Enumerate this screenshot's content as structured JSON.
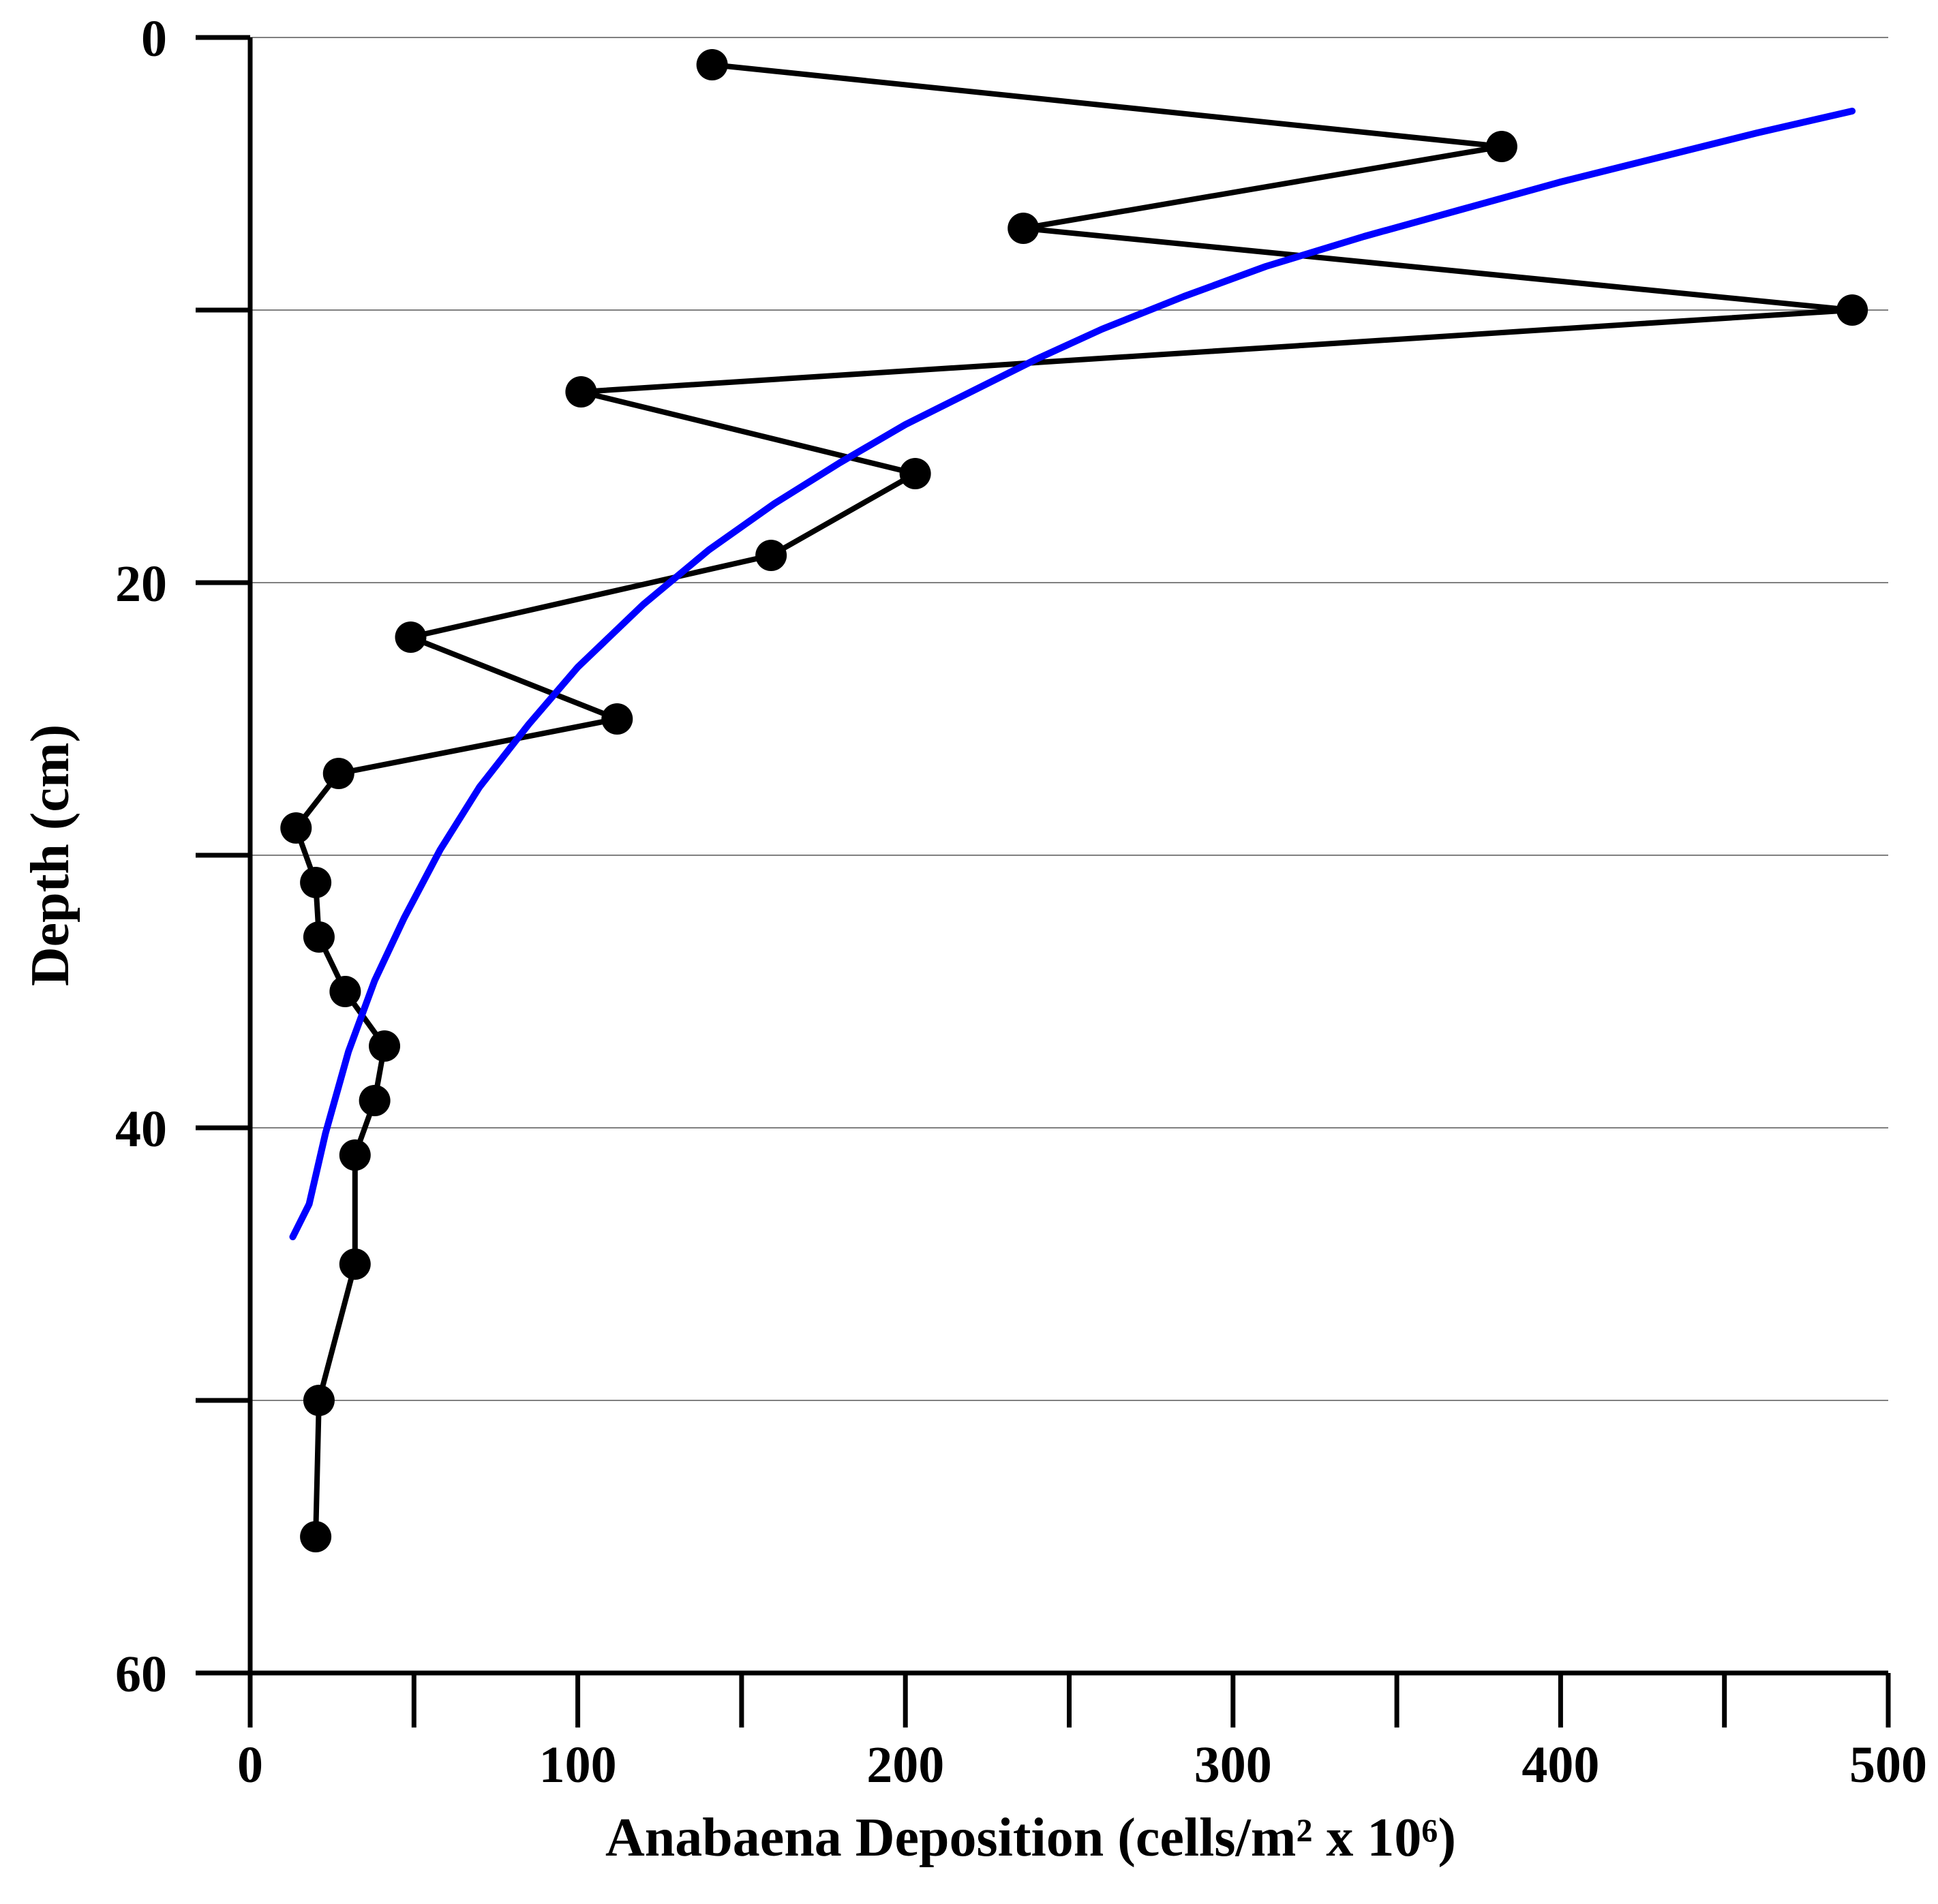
{
  "chart_data": {
    "type": "line",
    "xlabel": "Anabaena Deposition (cells/m² x 10⁶)",
    "ylabel": "Depth (cm)",
    "xlim": [
      0,
      500
    ],
    "ylim": [
      60,
      0
    ],
    "y_inverted": true,
    "x_ticks": [
      0,
      100,
      200,
      300,
      400,
      500
    ],
    "x_minor_ticks": [
      50,
      150,
      250,
      350,
      450
    ],
    "y_ticks": [
      0,
      20,
      40,
      60
    ],
    "y_minor_ticks": [
      10,
      30,
      50
    ],
    "grid": "horizontal",
    "series": [
      {
        "type": "line-markers",
        "color": "#000000",
        "points": [
          {
            "x": 141,
            "y": 1
          },
          {
            "x": 382,
            "y": 4
          },
          {
            "x": 236,
            "y": 7
          },
          {
            "x": 489,
            "y": 10
          },
          {
            "x": 101,
            "y": 13
          },
          {
            "x": 203,
            "y": 16
          },
          {
            "x": 159,
            "y": 19
          },
          {
            "x": 49,
            "y": 22
          },
          {
            "x": 112,
            "y": 25
          },
          {
            "x": 27,
            "y": 27
          },
          {
            "x": 14,
            "y": 29
          },
          {
            "x": 20,
            "y": 31
          },
          {
            "x": 21,
            "y": 33
          },
          {
            "x": 29,
            "y": 35
          },
          {
            "x": 41,
            "y": 37
          },
          {
            "x": 38,
            "y": 39
          },
          {
            "x": 32,
            "y": 41
          },
          {
            "x": 32,
            "y": 45
          },
          {
            "x": 21,
            "y": 50
          },
          {
            "x": 20,
            "y": 55
          }
        ]
      },
      {
        "type": "fit-curve",
        "color": "#0000ff",
        "points": [
          {
            "x": 489,
            "y": 2.7
          },
          {
            "x": 460,
            "y": 3.5
          },
          {
            "x": 430,
            "y": 4.4
          },
          {
            "x": 400,
            "y": 5.3
          },
          {
            "x": 370,
            "y": 6.3
          },
          {
            "x": 340,
            "y": 7.3
          },
          {
            "x": 310,
            "y": 8.4
          },
          {
            "x": 285,
            "y": 9.5
          },
          {
            "x": 260,
            "y": 10.7
          },
          {
            "x": 240,
            "y": 11.8
          },
          {
            "x": 220,
            "y": 13.0
          },
          {
            "x": 200,
            "y": 14.2
          },
          {
            "x": 180,
            "y": 15.6
          },
          {
            "x": 160,
            "y": 17.1
          },
          {
            "x": 140,
            "y": 18.8
          },
          {
            "x": 120,
            "y": 20.8
          },
          {
            "x": 100,
            "y": 23.1
          },
          {
            "x": 85,
            "y": 25.2
          },
          {
            "x": 70,
            "y": 27.5
          },
          {
            "x": 58,
            "y": 29.8
          },
          {
            "x": 47,
            "y": 32.3
          },
          {
            "x": 38,
            "y": 34.6
          },
          {
            "x": 30,
            "y": 37.2
          },
          {
            "x": 23,
            "y": 40.2
          },
          {
            "x": 18,
            "y": 42.8
          },
          {
            "x": 13,
            "y": 44.0
          }
        ]
      }
    ]
  }
}
